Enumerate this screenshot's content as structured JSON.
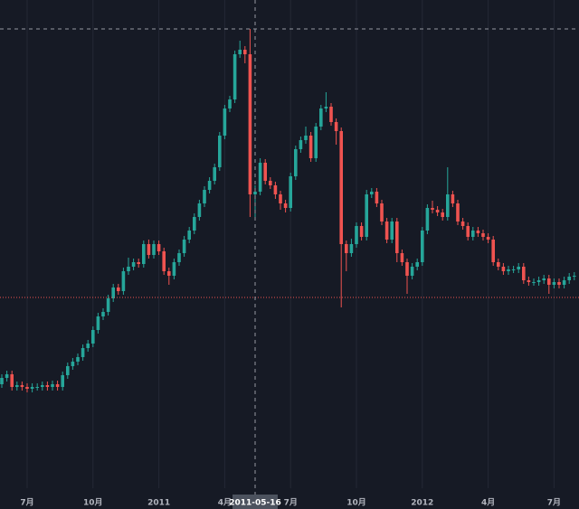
{
  "chart_data": {
    "type": "candlestick",
    "categories": [
      null,
      null,
      null,
      null,
      null,
      "7月",
      null,
      null,
      null,
      null,
      null,
      null,
      null,
      null,
      null,
      null,
      null,
      null,
      "10月",
      null,
      null,
      null,
      null,
      null,
      null,
      null,
      null,
      null,
      null,
      null,
      null,
      "2011",
      null,
      null,
      null,
      null,
      null,
      null,
      null,
      null,
      null,
      null,
      null,
      null,
      "4月",
      null,
      null,
      null,
      null,
      null,
      "2011-05-16",
      null,
      null,
      null,
      null,
      null,
      null,
      "7月",
      null,
      null,
      null,
      null,
      null,
      null,
      null,
      null,
      null,
      null,
      null,
      null,
      "10月",
      null,
      null,
      null,
      null,
      null,
      null,
      null,
      null,
      null,
      null,
      null,
      null,
      "2012",
      null,
      null,
      null,
      null,
      null,
      null,
      null,
      null,
      null,
      null,
      null,
      null,
      "4月",
      null,
      null,
      null,
      null,
      null,
      null,
      null,
      null,
      null,
      null,
      null,
      null,
      "7月",
      null,
      null,
      null,
      null
    ],
    "open": [
      115,
      122,
      126,
      112,
      114,
      112,
      110,
      112,
      112,
      114,
      112,
      115,
      112,
      125,
      135,
      140,
      145,
      155,
      160,
      175,
      190,
      195,
      210,
      222,
      218,
      240,
      245,
      250,
      248,
      270,
      258,
      270,
      262,
      240,
      235,
      250,
      260,
      275,
      285,
      300,
      315,
      330,
      340,
      355,
      390,
      420,
      430,
      480,
      485,
      480,
      325,
      328,
      360,
      340,
      335,
      325,
      315,
      310,
      345,
      375,
      385,
      390,
      365,
      400,
      420,
      422,
      405,
      395,
      270,
      260,
      270,
      290,
      278,
      325,
      328,
      315,
      295,
      275,
      295,
      260,
      250,
      235,
      245,
      250,
      285,
      310,
      308,
      305,
      300,
      325,
      315,
      295,
      290,
      278,
      285,
      282,
      278,
      275,
      250,
      245,
      240,
      242,
      242,
      245,
      230,
      228,
      228,
      230,
      232,
      225,
      228,
      225,
      230,
      234
    ],
    "high": [
      126,
      130,
      130,
      118,
      118,
      116,
      116,
      116,
      118,
      118,
      119,
      119,
      129,
      139,
      144,
      149,
      159,
      164,
      179,
      194,
      199,
      214,
      226,
      226,
      244,
      255,
      254,
      254,
      274,
      275,
      274,
      274,
      266,
      244,
      254,
      264,
      279,
      289,
      304,
      319,
      334,
      344,
      359,
      394,
      424,
      434,
      484,
      495,
      489,
      508,
      335,
      365,
      364,
      344,
      339,
      329,
      319,
      349,
      379,
      389,
      400,
      394,
      404,
      424,
      438,
      426,
      409,
      399,
      274,
      276,
      294,
      294,
      330,
      332,
      332,
      319,
      299,
      299,
      299,
      264,
      254,
      249,
      254,
      289,
      314,
      318,
      312,
      309,
      355,
      329,
      319,
      299,
      294,
      289,
      289,
      286,
      282,
      279,
      254,
      249,
      246,
      246,
      249,
      249,
      234,
      232,
      234,
      236,
      236,
      232,
      232,
      234,
      238,
      239
    ],
    "low": [
      111,
      118,
      108,
      108,
      108,
      106,
      106,
      108,
      108,
      108,
      108,
      108,
      108,
      121,
      131,
      136,
      141,
      151,
      156,
      171,
      186,
      191,
      206,
      214,
      214,
      236,
      241,
      244,
      244,
      254,
      254,
      258,
      236,
      225,
      231,
      246,
      256,
      271,
      281,
      296,
      311,
      326,
      336,
      351,
      386,
      416,
      426,
      476,
      470,
      300,
      300,
      324,
      336,
      331,
      320,
      308,
      305,
      306,
      341,
      371,
      381,
      361,
      361,
      396,
      416,
      401,
      380,
      200,
      240,
      256,
      266,
      274,
      274,
      321,
      311,
      291,
      271,
      271,
      250,
      246,
      215,
      231,
      241,
      246,
      281,
      304,
      301,
      296,
      296,
      311,
      291,
      286,
      274,
      274,
      278,
      274,
      271,
      246,
      241,
      236,
      236,
      238,
      238,
      226,
      224,
      224,
      224,
      226,
      215,
      221,
      221,
      221,
      226,
      230
    ],
    "close": [
      122,
      126,
      112,
      114,
      112,
      110,
      112,
      112,
      114,
      112,
      115,
      112,
      125,
      135,
      140,
      145,
      155,
      160,
      175,
      190,
      195,
      210,
      222,
      218,
      240,
      245,
      250,
      248,
      270,
      258,
      270,
      262,
      240,
      235,
      250,
      260,
      275,
      285,
      300,
      315,
      330,
      340,
      355,
      390,
      420,
      430,
      480,
      485,
      480,
      325,
      328,
      360,
      340,
      335,
      325,
      315,
      310,
      345,
      375,
      385,
      390,
      365,
      400,
      420,
      422,
      405,
      395,
      270,
      260,
      270,
      290,
      278,
      325,
      328,
      315,
      295,
      275,
      295,
      260,
      250,
      235,
      245,
      250,
      285,
      310,
      308,
      305,
      300,
      325,
      315,
      295,
      290,
      278,
      285,
      282,
      278,
      275,
      250,
      245,
      240,
      242,
      242,
      245,
      230,
      228,
      228,
      230,
      232,
      225,
      228,
      225,
      230,
      234,
      235
    ],
    "up_color": "#26a69a",
    "down_color": "#ef5350",
    "ylim": [
      0,
      540
    ],
    "price_line": {
      "value": 211,
      "color": "#ef5350"
    },
    "crosshair": {
      "x": "2011-05-16",
      "y": 508
    },
    "grid": true
  }
}
